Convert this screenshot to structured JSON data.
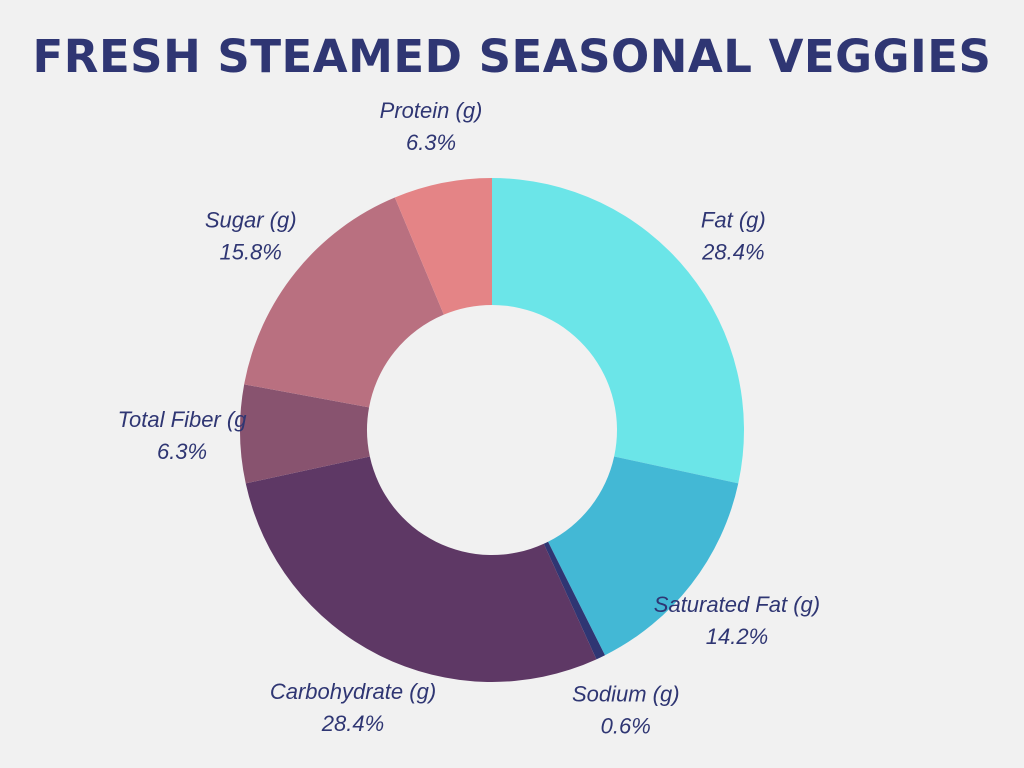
{
  "chart_data": {
    "type": "pie",
    "title": "FRESH STEAMED SEASONAL VEGGIES",
    "categories": [
      "Fat (g)",
      "Saturated Fat (g)",
      "Sodium (g)",
      "Carbohydrate (g)",
      "Total Fiber (g",
      "Sugar (g)",
      "Protein (g)"
    ],
    "values": [
      28.4,
      14.2,
      0.6,
      28.4,
      6.3,
      15.8,
      6.3
    ],
    "value_labels": [
      "28.4%",
      "14.2%",
      "0.6%",
      "28.4%",
      "6.3%",
      "15.8%",
      "6.3%"
    ],
    "colors": [
      "#6be5e8",
      "#43b8d5",
      "#2f3673",
      "#5e3865",
      "#88536f",
      "#b97080",
      "#e48486"
    ],
    "donut": true,
    "start_angle": "top",
    "direction": "clockwise",
    "legend": "none"
  }
}
